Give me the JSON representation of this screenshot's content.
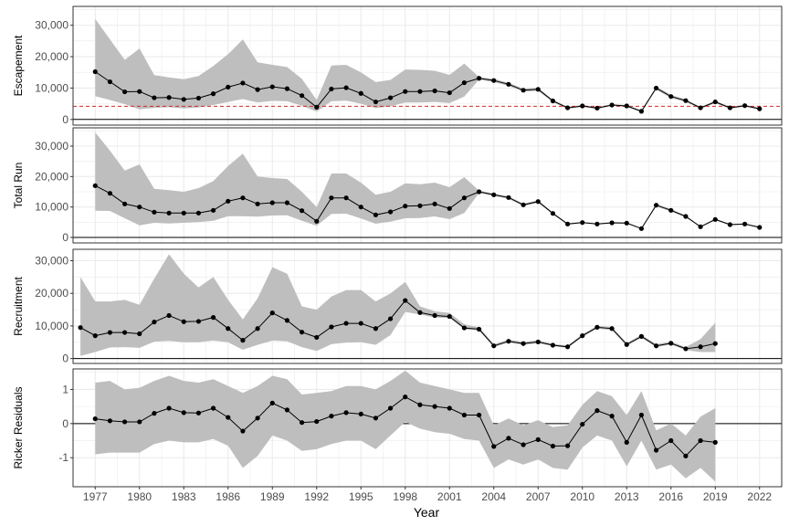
{
  "chart_data": {
    "type": "line",
    "xlabel": "Year",
    "x_ticks": [
      "1977",
      "1980",
      "1983",
      "1986",
      "1989",
      "1992",
      "1995",
      "1998",
      "2001",
      "2004",
      "2007",
      "2010",
      "2013",
      "2016",
      "2019",
      "2022"
    ],
    "x_range": [
      1975.5,
      2023.5
    ],
    "colors": {
      "band": "#bebebe",
      "line": "#000000",
      "reference": "#d62728",
      "grid": "#ebebeb"
    },
    "panels": [
      {
        "ylabel": "Escapement",
        "ylim": [
          -1800,
          36000
        ],
        "yticks": [
          0,
          10000,
          20000,
          30000
        ],
        "ytick_labels": [
          "0",
          "10,000",
          "20,000",
          "30,000"
        ],
        "reference_line": 4200,
        "x": [
          1977,
          1978,
          1979,
          1980,
          1981,
          1982,
          1983,
          1984,
          1985,
          1986,
          1987,
          1988,
          1989,
          1990,
          1991,
          1992,
          1993,
          1994,
          1995,
          1996,
          1997,
          1998,
          1999,
          2000,
          2001,
          2002,
          2003,
          2004,
          2005,
          2006,
          2007,
          2008,
          2009,
          2010,
          2011,
          2012,
          2013,
          2014,
          2015,
          2016,
          2017,
          2018,
          2019,
          2020,
          2021,
          2022
        ],
        "y": [
          15200,
          12000,
          8800,
          8900,
          6900,
          7000,
          6400,
          6800,
          8200,
          10300,
          11600,
          9500,
          10400,
          9800,
          7600,
          3900,
          9700,
          10100,
          8300,
          5600,
          6900,
          8900,
          8900,
          9100,
          8500,
          11700,
          13100,
          12400,
          11200,
          9300,
          9600,
          5900,
          3700,
          4300,
          3600,
          4600,
          4300,
          2600,
          10000,
          7300,
          6000,
          3700,
          5600,
          3700,
          4400,
          3400
        ],
        "lower": [
          7400,
          6200,
          4900,
          3200,
          3700,
          3900,
          3500,
          3800,
          4600,
          5600,
          6500,
          5400,
          5900,
          5800,
          4400,
          2500,
          5800,
          6000,
          5000,
          3600,
          4200,
          5400,
          5400,
          5600,
          5200,
          7300,
          12700,
          11900,
          10700,
          8800,
          9100,
          5500,
          3400,
          4000,
          3300,
          4300,
          4000,
          2300,
          9500,
          6800,
          5600,
          3400,
          5200,
          3400,
          4100,
          3100
        ],
        "upper": [
          32000,
          25500,
          19000,
          22600,
          14100,
          13400,
          12800,
          13800,
          17000,
          20800,
          25500,
          18200,
          17400,
          16700,
          12900,
          6200,
          17200,
          17400,
          15000,
          11900,
          12600,
          15900,
          15800,
          15500,
          14200,
          17800,
          13500,
          12900,
          11700,
          9800,
          10100,
          6300,
          4000,
          4600,
          3900,
          4900,
          4600,
          2900,
          10500,
          7800,
          6400,
          4000,
          6000,
          4000,
          4700,
          3700
        ]
      },
      {
        "ylabel": "Total Run",
        "ylim": [
          -1800,
          36000
        ],
        "yticks": [
          0,
          10000,
          20000,
          30000
        ],
        "ytick_labels": [
          "0",
          "10,000",
          "20,000",
          "30,000"
        ],
        "x": [
          1977,
          1978,
          1979,
          1980,
          1981,
          1982,
          1983,
          1984,
          1985,
          1986,
          1987,
          1988,
          1989,
          1990,
          1991,
          1992,
          1993,
          1994,
          1995,
          1996,
          1997,
          1998,
          1999,
          2000,
          2001,
          2002,
          2003,
          2004,
          2005,
          2006,
          2007,
          2008,
          2009,
          2010,
          2011,
          2012,
          2013,
          2014,
          2015,
          2016,
          2017,
          2018,
          2019,
          2020,
          2021,
          2022
        ],
        "y": [
          17000,
          14500,
          11000,
          10000,
          8300,
          8000,
          8000,
          8000,
          8900,
          11900,
          13000,
          11000,
          11400,
          11400,
          8800,
          5300,
          13000,
          13000,
          10000,
          7400,
          8400,
          10300,
          10400,
          11000,
          9500,
          13000,
          15000,
          14000,
          13100,
          10700,
          11800,
          7900,
          4400,
          4900,
          4400,
          4800,
          4700,
          2900,
          10600,
          8900,
          6900,
          3500,
          5900,
          4200,
          4400,
          3300
        ],
        "lower": [
          8800,
          8700,
          6300,
          4000,
          4800,
          4600,
          4800,
          5000,
          5500,
          7000,
          7000,
          6800,
          7200,
          7300,
          5500,
          3800,
          7700,
          7800,
          6200,
          4500,
          5200,
          6300,
          6400,
          6900,
          6000,
          8000,
          14600,
          13600,
          12700,
          10300,
          11400,
          7600,
          4200,
          4700,
          4200,
          4600,
          4500,
          2700,
          10200,
          8500,
          6600,
          3300,
          5600,
          4000,
          4200,
          3100
        ],
        "upper": [
          34500,
          28500,
          22000,
          24000,
          16000,
          15500,
          15000,
          16200,
          18500,
          23500,
          27500,
          20000,
          19500,
          19200,
          15000,
          10000,
          21000,
          21000,
          18000,
          14000,
          15000,
          17800,
          17500,
          18000,
          16500,
          19800,
          15400,
          14400,
          13500,
          11100,
          12200,
          8200,
          4600,
          5100,
          4600,
          5000,
          4900,
          3100,
          11000,
          9300,
          7200,
          3700,
          6200,
          4400,
          4600,
          3500
        ]
      },
      {
        "ylabel": "Recruitment",
        "ylim": [
          -1500,
          33500
        ],
        "yticks": [
          0,
          10000,
          20000,
          30000
        ],
        "ytick_labels": [
          "0",
          "10,000",
          "20,000",
          "30,000"
        ],
        "x": [
          1976,
          1977,
          1978,
          1979,
          1980,
          1981,
          1982,
          1983,
          1984,
          1985,
          1986,
          1987,
          1988,
          1989,
          1990,
          1991,
          1992,
          1993,
          1994,
          1995,
          1996,
          1997,
          1998,
          1999,
          2000,
          2001,
          2002,
          2003,
          2004,
          2005,
          2006,
          2007,
          2008,
          2009,
          2010,
          2011,
          2012,
          2013,
          2014,
          2015,
          2016,
          2017,
          2018,
          2019
        ],
        "y": [
          9500,
          7000,
          8000,
          8000,
          7600,
          11200,
          13200,
          11300,
          11400,
          12600,
          9200,
          5600,
          9200,
          14000,
          11700,
          8100,
          6500,
          9700,
          10800,
          10800,
          9200,
          12200,
          17800,
          14100,
          13200,
          12900,
          9400,
          9000,
          3900,
          5300,
          4600,
          5100,
          4100,
          3600,
          7000,
          9600,
          9200,
          4300,
          6800,
          3900,
          4700,
          3000,
          3600,
          4600
        ],
        "lower": [
          800,
          2000,
          3400,
          3500,
          3300,
          5200,
          5400,
          5000,
          5000,
          5500,
          5000,
          2700,
          4200,
          5500,
          5300,
          3500,
          2300,
          4400,
          4900,
          5000,
          4200,
          7200,
          14300,
          13500,
          12600,
          12400,
          9000,
          8600,
          3500,
          4900,
          4200,
          4700,
          3800,
          3300,
          6600,
          9200,
          8700,
          3900,
          6400,
          3500,
          4300,
          2600,
          2000,
          2000
        ],
        "upper": [
          25000,
          17500,
          17500,
          18000,
          16500,
          24500,
          32000,
          26000,
          21800,
          25000,
          18000,
          12000,
          18500,
          28000,
          26000,
          16000,
          15000,
          19000,
          21000,
          21000,
          17500,
          20000,
          23500,
          16000,
          14500,
          14000,
          10500,
          9600,
          4400,
          5800,
          5100,
          5600,
          4500,
          4000,
          7400,
          10000,
          9700,
          4800,
          7300,
          4400,
          5200,
          3500,
          6000,
          11000
        ]
      },
      {
        "ylabel": "Ricker Residuals",
        "ylim": [
          -1.85,
          1.6
        ],
        "yticks": [
          -1,
          0,
          1
        ],
        "ytick_labels": [
          "-1",
          "0",
          "1"
        ],
        "reference_line": 0,
        "x": [
          1977,
          1978,
          1979,
          1980,
          1981,
          1982,
          1983,
          1984,
          1985,
          1986,
          1987,
          1988,
          1989,
          1990,
          1991,
          1992,
          1993,
          1994,
          1995,
          1996,
          1997,
          1998,
          1999,
          2000,
          2001,
          2002,
          2003,
          2004,
          2005,
          2006,
          2007,
          2008,
          2009,
          2010,
          2011,
          2012,
          2013,
          2014,
          2015,
          2016,
          2017,
          2018,
          2019
        ],
        "y": [
          0.14,
          0.08,
          0.05,
          0.05,
          0.3,
          0.45,
          0.32,
          0.31,
          0.45,
          0.18,
          -0.22,
          0.16,
          0.6,
          0.4,
          0.03,
          0.06,
          0.22,
          0.32,
          0.28,
          0.16,
          0.45,
          0.78,
          0.55,
          0.5,
          0.45,
          0.25,
          0.25,
          -0.67,
          -0.43,
          -0.62,
          -0.47,
          -0.66,
          -0.65,
          -0.02,
          0.38,
          0.22,
          -0.55,
          0.25,
          -0.78,
          -0.5,
          -0.95,
          -0.5,
          -0.55
        ],
        "lower": [
          -0.9,
          -0.85,
          -0.85,
          -0.85,
          -0.6,
          -0.5,
          -0.55,
          -0.55,
          -0.45,
          -0.65,
          -1.3,
          -0.95,
          -0.35,
          -0.5,
          -0.8,
          -0.75,
          -0.6,
          -0.5,
          -0.5,
          -0.75,
          -0.35,
          0.05,
          -0.15,
          -0.25,
          -0.3,
          -0.45,
          -0.5,
          -1.3,
          -1.05,
          -1.2,
          -1.05,
          -1.3,
          -1.35,
          -0.7,
          -0.35,
          -0.5,
          -1.25,
          -0.5,
          -1.35,
          -1.2,
          -1.6,
          -1.3,
          -1.7
        ],
        "upper": [
          1.2,
          1.25,
          1.0,
          1.05,
          1.25,
          1.4,
          1.25,
          1.2,
          1.3,
          1.1,
          0.9,
          1.1,
          1.4,
          1.3,
          0.85,
          0.9,
          0.95,
          1.1,
          1.1,
          1.0,
          1.25,
          1.55,
          1.2,
          1.1,
          1.0,
          0.9,
          0.9,
          -0.05,
          0.15,
          -0.05,
          0.1,
          -0.1,
          -0.05,
          0.55,
          0.95,
          0.8,
          0.25,
          0.95,
          -0.2,
          0.0,
          -0.35,
          0.2,
          0.45
        ]
      }
    ]
  }
}
